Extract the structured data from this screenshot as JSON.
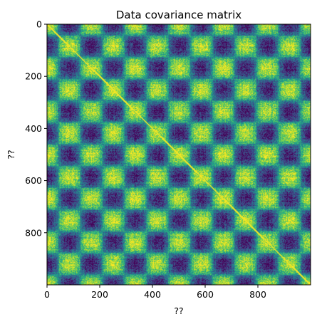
{
  "chart_data": {
    "type": "heatmap",
    "title": "Data covariance matrix",
    "xlabel": "??",
    "ylabel": "??",
    "matrix_size": 1000,
    "block_period": 167,
    "xlim": [
      0,
      1000
    ],
    "ylim": [
      1000,
      0
    ],
    "x_ticks": [
      0,
      200,
      400,
      600,
      800
    ],
    "y_ticks": [
      0,
      200,
      400,
      600,
      800
    ],
    "colormap": "viridis",
    "colors": {
      "low": "#440154",
      "mid_low": "#3b528b",
      "mid": "#21918c",
      "mid_high": "#5ec962",
      "high": "#fde725"
    },
    "grid": false
  }
}
